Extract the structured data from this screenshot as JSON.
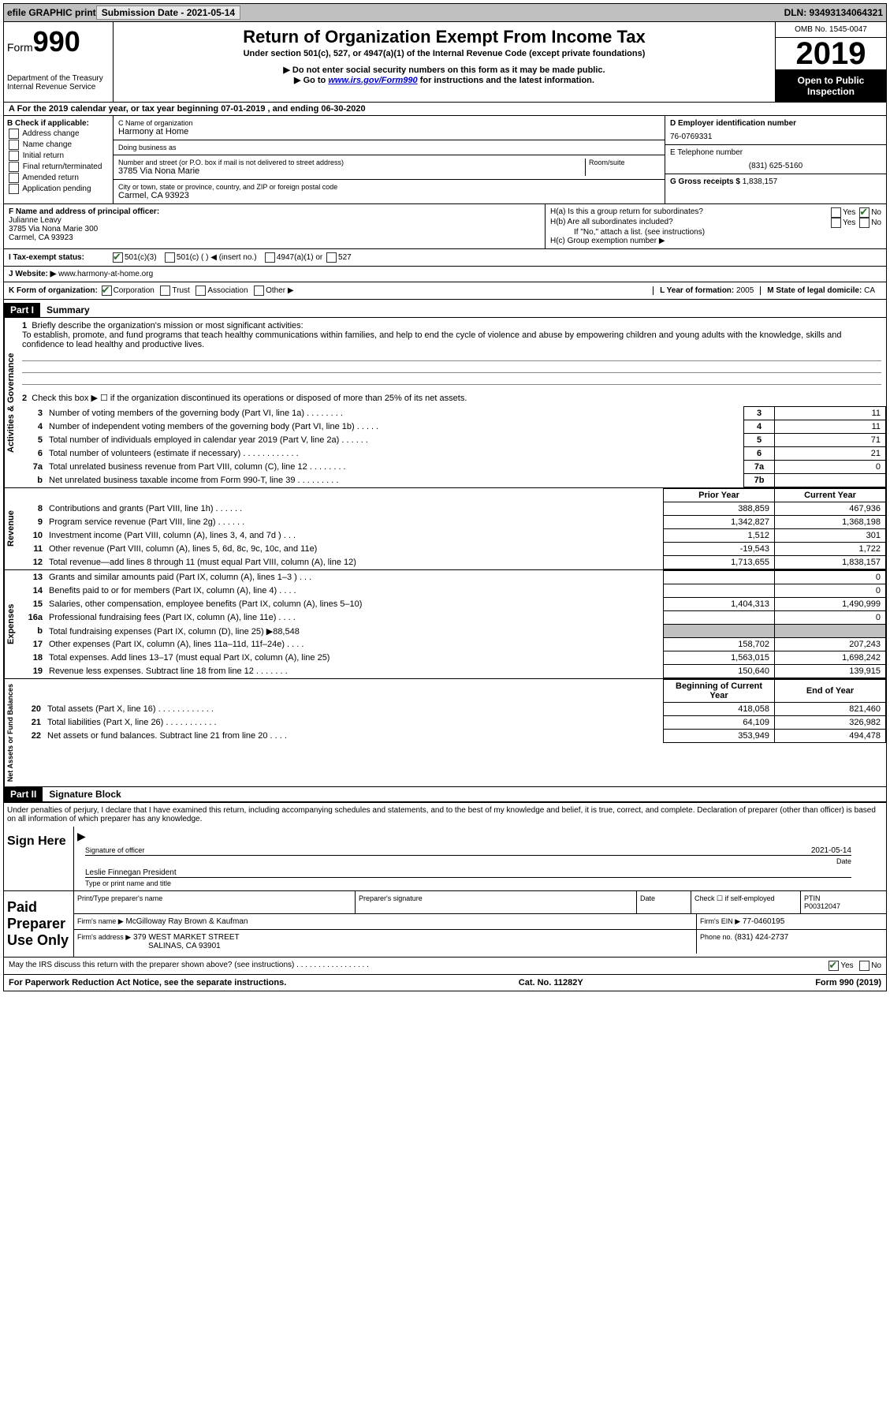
{
  "topbar": {
    "efile": "efile GRAPHIC print",
    "submission_label": "Submission Date - 2021-05-14",
    "dln": "DLN: 93493134064321"
  },
  "header": {
    "form_label": "Form",
    "form_number": "990",
    "dept1": "Department of the Treasury",
    "dept2": "Internal Revenue Service",
    "title": "Return of Organization Exempt From Income Tax",
    "subtitle": "Under section 501(c), 527, or 4947(a)(1) of the Internal Revenue Code (except private foundations)",
    "note1": "▶ Do not enter social security numbers on this form as it may be made public.",
    "note2_pre": "▶ Go to ",
    "note2_link": "www.irs.gov/Form990",
    "note2_post": " for instructions and the latest information.",
    "omb": "OMB No. 1545-0047",
    "year": "2019",
    "inspect": "Open to Public Inspection"
  },
  "lineA": "A For the 2019 calendar year, or tax year beginning 07-01-2019   , and ending 06-30-2020",
  "boxB": {
    "label": "B Check if applicable:",
    "opts": [
      "Address change",
      "Name change",
      "Initial return",
      "Final return/terminated",
      "Amended return",
      "Application pending"
    ]
  },
  "boxC": {
    "name_label": "C Name of organization",
    "name": "Harmony at Home",
    "dba_label": "Doing business as",
    "dba": "",
    "addr_label": "Number and street (or P.O. box if mail is not delivered to street address)",
    "room_label": "Room/suite",
    "addr": "3785 Via Nona Marie",
    "city_label": "City or town, state or province, country, and ZIP or foreign postal code",
    "city": "Carmel, CA  93923"
  },
  "boxD": {
    "label": "D Employer identification number",
    "ein": "76-0769331"
  },
  "boxE": {
    "label": "E Telephone number",
    "phone": "(831) 625-5160"
  },
  "boxG": {
    "label": "G Gross receipts $",
    "val": "1,838,157"
  },
  "boxF": {
    "label": "F  Name and address of principal officer:",
    "name": "Julianne Leavy",
    "addr1": "3785 Via Nona Marie 300",
    "addr2": "Carmel, CA  93923"
  },
  "boxH": {
    "a": "H(a)  Is this a group return for subordinates?",
    "b": "H(b)  Are all subordinates included?",
    "b_note": "If \"No,\" attach a list. (see instructions)",
    "c": "H(c)  Group exemption number ▶",
    "yes": "Yes",
    "no": "No"
  },
  "taxI": {
    "label": "I  Tax-exempt status:",
    "o1": "501(c)(3)",
    "o2": "501(c) (   ) ◀ (insert no.)",
    "o3": "4947(a)(1) or",
    "o4": "527"
  },
  "webJ": {
    "label": "J  Website: ▶",
    "val": "www.harmony-at-home.org"
  },
  "rowK": {
    "label": "K Form of organization:",
    "o1": "Corporation",
    "o2": "Trust",
    "o3": "Association",
    "o4": "Other ▶",
    "L": "L Year of formation:",
    "Lval": "2005",
    "M": "M State of legal domicile:",
    "Mval": "CA"
  },
  "part1": {
    "num": "Part I",
    "title": "Summary"
  },
  "mission": {
    "num": "1",
    "label": "Briefly describe the organization's mission or most significant activities:",
    "text": "To establish, promote, and fund programs that teach healthy communications within families, and help to end the cycle of violence and abuse by empowering children and young adults with the knowledge, skills and confidence to lead healthy and productive lives."
  },
  "gov": {
    "l2": "Check this box ▶ ☐  if the organization discontinued its operations or disposed of more than 25% of its net assets.",
    "rows": [
      {
        "n": "3",
        "d": "Number of voting members of the governing body (Part VI, line 1a)   .    .    .    .    .    .    .    .",
        "b": "3",
        "v": "11"
      },
      {
        "n": "4",
        "d": "Number of independent voting members of the governing body (Part VI, line 1b)   .    .    .    .    .",
        "b": "4",
        "v": "11"
      },
      {
        "n": "5",
        "d": "Total number of individuals employed in calendar year 2019 (Part V, line 2a)   .    .    .    .    .    .",
        "b": "5",
        "v": "71"
      },
      {
        "n": "6",
        "d": "Total number of volunteers (estimate if necessary)    .    .    .    .    .    .    .    .    .    .    .    .",
        "b": "6",
        "v": "21"
      },
      {
        "n": "7a",
        "d": "Total unrelated business revenue from Part VIII, column (C), line 12   .    .    .    .    .    .    .    .",
        "b": "7a",
        "v": "0"
      },
      {
        "n": "b",
        "d": "Net unrelated business taxable income from Form 990-T, line 39    .    .    .    .    .    .    .    .    .",
        "b": "7b",
        "v": ""
      }
    ]
  },
  "cols": {
    "prior": "Prior Year",
    "current": "Current Year"
  },
  "revenue": [
    {
      "n": "8",
      "d": "Contributions and grants (Part VIII, line 1h)   .    .    .    .    .    .",
      "p": "388,859",
      "c": "467,936"
    },
    {
      "n": "9",
      "d": "Program service revenue (Part VIII, line 2g)   .    .    .    .    .    .",
      "p": "1,342,827",
      "c": "1,368,198"
    },
    {
      "n": "10",
      "d": "Investment income (Part VIII, column (A), lines 3, 4, and 7d )    .    .    .",
      "p": "1,512",
      "c": "301"
    },
    {
      "n": "11",
      "d": "Other revenue (Part VIII, column (A), lines 5, 6d, 8c, 9c, 10c, and 11e)",
      "p": "-19,543",
      "c": "1,722"
    },
    {
      "n": "12",
      "d": "Total revenue—add lines 8 through 11 (must equal Part VIII, column (A), line 12)",
      "p": "1,713,655",
      "c": "1,838,157"
    }
  ],
  "expenses": [
    {
      "n": "13",
      "d": "Grants and similar amounts paid (Part IX, column (A), lines 1–3 )   .    .    .",
      "p": "",
      "c": "0"
    },
    {
      "n": "14",
      "d": "Benefits paid to or for members (Part IX, column (A), line 4)   .    .    .    .",
      "p": "",
      "c": "0"
    },
    {
      "n": "15",
      "d": "Salaries, other compensation, employee benefits (Part IX, column (A), lines 5–10)",
      "p": "1,404,313",
      "c": "1,490,999"
    },
    {
      "n": "16a",
      "d": "Professional fundraising fees (Part IX, column (A), line 11e)   .    .    .    .",
      "p": "",
      "c": "0"
    },
    {
      "n": "b",
      "d": "Total fundraising expenses (Part IX, column (D), line 25) ▶88,548",
      "p": "grey",
      "c": "grey"
    },
    {
      "n": "17",
      "d": "Other expenses (Part IX, column (A), lines 11a–11d, 11f–24e)   .    .    .    .",
      "p": "158,702",
      "c": "207,243"
    },
    {
      "n": "18",
      "d": "Total expenses. Add lines 13–17 (must equal Part IX, column (A), line 25)",
      "p": "1,563,015",
      "c": "1,698,242"
    },
    {
      "n": "19",
      "d": "Revenue less expenses. Subtract line 18 from line 12 .    .    .    .    .    .    .",
      "p": "150,640",
      "c": "139,915"
    }
  ],
  "netcols": {
    "begin": "Beginning of Current Year",
    "end": "End of Year"
  },
  "net": [
    {
      "n": "20",
      "d": "Total assets (Part X, line 16)   .    .    .    .    .    .    .    .    .    .    .    .",
      "p": "418,058",
      "c": "821,460"
    },
    {
      "n": "21",
      "d": "Total liabilities (Part X, line 26)   .    .    .    .    .    .    .    .    .    .    .",
      "p": "64,109",
      "c": "326,982"
    },
    {
      "n": "22",
      "d": "Net assets or fund balances. Subtract line 21 from line 20    .    .    .    .",
      "p": "353,949",
      "c": "494,478"
    }
  ],
  "part2": {
    "num": "Part II",
    "title": "Signature Block"
  },
  "sig": {
    "perjury": "Under penalties of perjury, I declare that I have examined this return, including accompanying schedules and statements, and to the best of my knowledge and belief, it is true, correct, and complete. Declaration of preparer (other than officer) is based on all information of which preparer has any knowledge.",
    "sign_here": "Sign Here",
    "sig_officer": "Signature of officer",
    "date": "Date",
    "date_val": "2021-05-14",
    "name_title": "Leslie Finnegan  President",
    "name_title_label": "Type or print name and title",
    "paid": "Paid Preparer Use Only",
    "prep_name_label": "Print/Type preparer's name",
    "prep_sig_label": "Preparer's signature",
    "prep_date_label": "Date",
    "check_self": "Check ☐  if self-employed",
    "ptin_label": "PTIN",
    "ptin": "P00312047",
    "firm_name_label": "Firm's name    ▶",
    "firm_name": "McGilloway Ray Brown & Kaufman",
    "firm_ein_label": "Firm's EIN ▶",
    "firm_ein": "77-0460195",
    "firm_addr_label": "Firm's address ▶",
    "firm_addr1": "379 WEST MARKET STREET",
    "firm_addr2": "SALINAS, CA  93901",
    "firm_phone_label": "Phone no.",
    "firm_phone": "(831) 424-2737",
    "discuss": "May the IRS discuss this return with the preparer shown above? (see instructions)    .    .    .    .    .    .    .    .    .    .    .    .    .    .    .    .    .",
    "yes": "Yes",
    "no": "No"
  },
  "footer": {
    "left": "For Paperwork Reduction Act Notice, see the separate instructions.",
    "mid": "Cat. No. 11282Y",
    "right": "Form 990 (2019)"
  },
  "sidelabels": {
    "gov": "Activities & Governance",
    "rev": "Revenue",
    "exp": "Expenses",
    "net": "Net Assets or Fund Balances"
  }
}
